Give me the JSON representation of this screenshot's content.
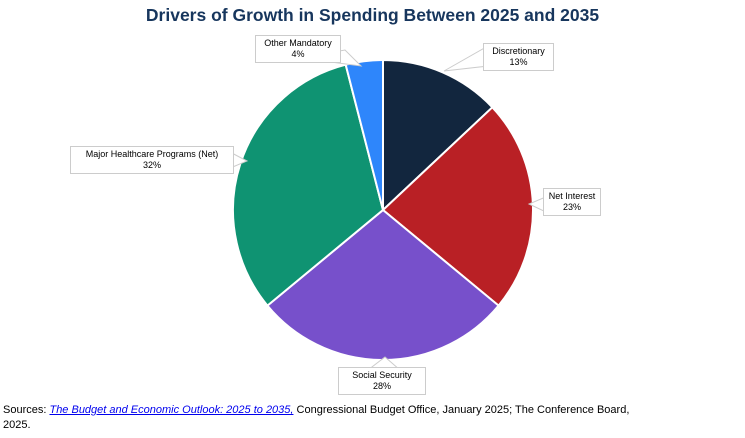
{
  "chart_data": {
    "type": "pie",
    "title": "Drivers of Growth in Spending Between 2025 and 2035",
    "title_color": "#17365D",
    "start_angle_deg": 0,
    "direction": "clockwise",
    "slice_border_color": "#FFFFFF",
    "callout_box_border_color": "#CCCCCC",
    "slices": [
      {
        "label": "Discretionary",
        "value": 13,
        "pct_label": "13%",
        "color": "#12263E"
      },
      {
        "label": "Net Interest",
        "value": 23,
        "pct_label": "23%",
        "color": "#B92025"
      },
      {
        "label": "Social Security",
        "value": 28,
        "pct_label": "28%",
        "color": "#7750CB"
      },
      {
        "label": "Major Healthcare Programs (Net)",
        "value": 32,
        "pct_label": "32%",
        "color": "#0F9372"
      },
      {
        "label": "Other Mandatory",
        "value": 4,
        "pct_label": "4%",
        "color": "#2E86FB"
      }
    ]
  },
  "sources": {
    "prefix": "Sources: ",
    "link_text": "The Budget and Economic Outlook: 2025 to 2035,",
    "after_link": " Congressional Budget Office, January 2025; The Conference Board,",
    "line2": "2025.",
    "link_color": "#0000EE"
  }
}
